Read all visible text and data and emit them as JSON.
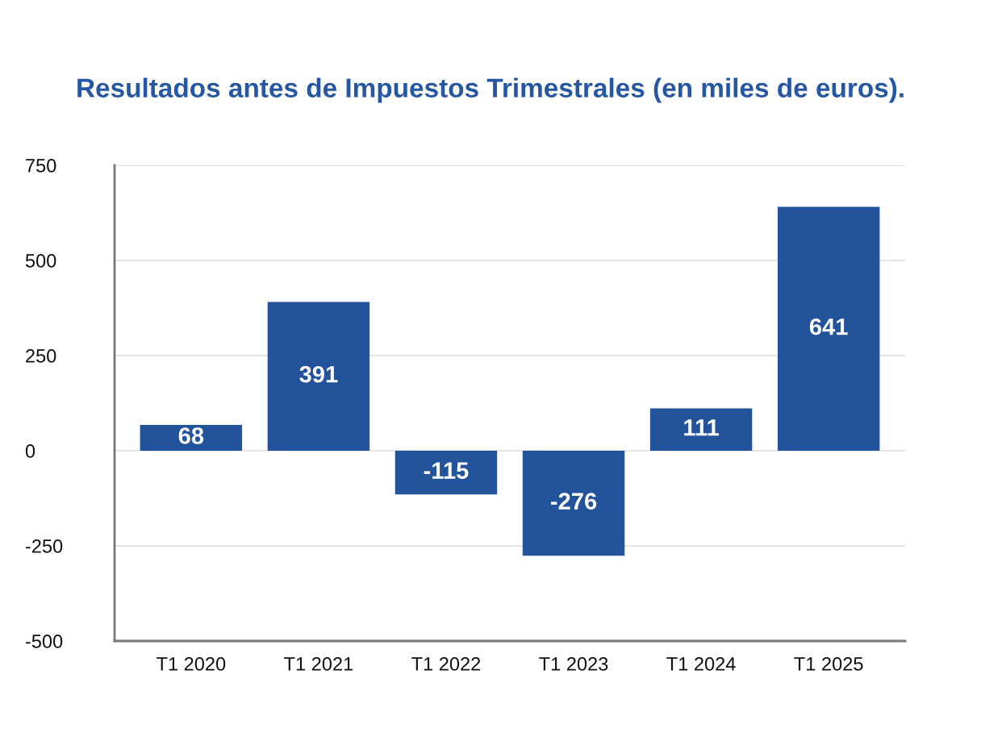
{
  "chart_data": {
    "type": "bar",
    "title": "Resultados antes de Impuestos Trimestrales (en miles de euros).",
    "categories": [
      "T1 2020",
      "T1 2021",
      "T1 2022",
      "T1 2023",
      "T1 2024",
      "T1 2025"
    ],
    "values": [
      68,
      391,
      -115,
      -276,
      111,
      641
    ],
    "color": "#23549b",
    "ylim": [
      -500,
      750
    ],
    "yticks": [
      -500,
      -250,
      0,
      250,
      500,
      750
    ],
    "grid": "y",
    "data_labels": true
  }
}
